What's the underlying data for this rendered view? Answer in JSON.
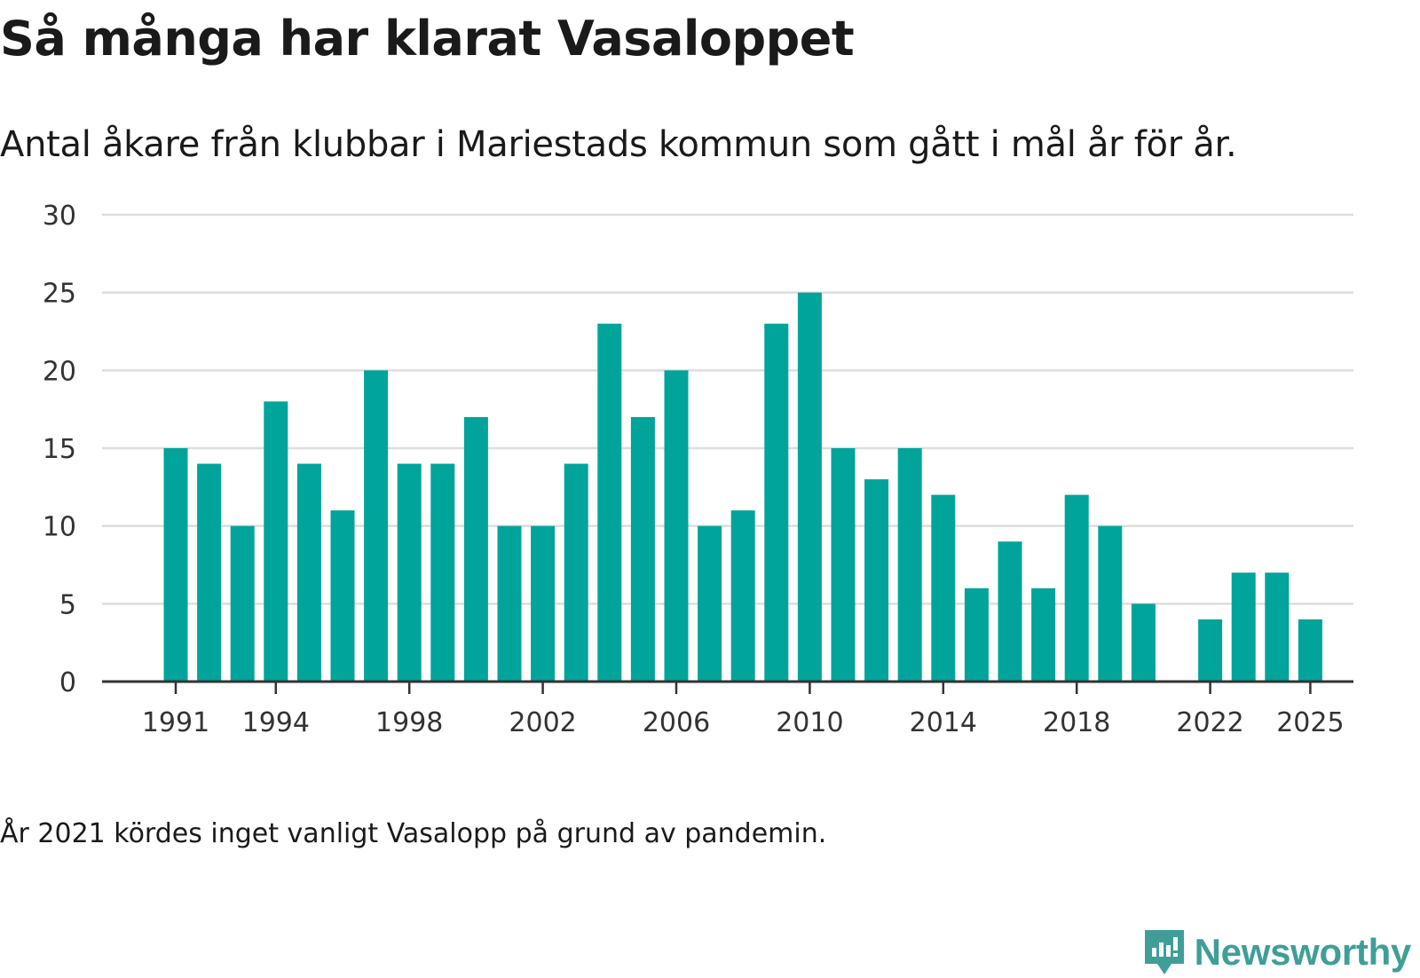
{
  "colors": {
    "bar": "#00a49a",
    "grid": "#dddddd",
    "axis": "#333333",
    "brand": "#3f9f98"
  },
  "chart_data": {
    "type": "bar",
    "title": "Så många har klarat Vasaloppet",
    "subtitle": "Antal åkare från klubbar i Mariestads kommun som gått i mål år för år.",
    "xlabel": "",
    "ylabel": "",
    "ylim": [
      0,
      30
    ],
    "yticks": [
      "0",
      "5",
      "10",
      "15",
      "20",
      "25",
      "30"
    ],
    "xtick_labels": [
      "1991",
      "1994",
      "1998",
      "2002",
      "2006",
      "2010",
      "2014",
      "2018",
      "2022",
      "2025"
    ],
    "categories": [
      "1991",
      "1992",
      "1993",
      "1994",
      "1995",
      "1996",
      "1997",
      "1998",
      "1999",
      "2000",
      "2001",
      "2002",
      "2003",
      "2004",
      "2005",
      "2006",
      "2007",
      "2008",
      "2009",
      "2010",
      "2011",
      "2012",
      "2013",
      "2014",
      "2015",
      "2016",
      "2017",
      "2018",
      "2019",
      "2020",
      "2021",
      "2022",
      "2023",
      "2024",
      "2025"
    ],
    "values": [
      15,
      14,
      10,
      18,
      14,
      11,
      20,
      14,
      14,
      17,
      10,
      10,
      14,
      23,
      17,
      20,
      10,
      11,
      23,
      25,
      15,
      13,
      15,
      12,
      6,
      9,
      6,
      12,
      10,
      5,
      null,
      4,
      7,
      7,
      4
    ],
    "grid": true,
    "legend": "none"
  },
  "note": "År 2021 kördes inget vanligt Vasalopp på grund av pandemin.",
  "brand": {
    "name": "Newsworthy",
    "icon": "newsworthy-logo-icon"
  }
}
